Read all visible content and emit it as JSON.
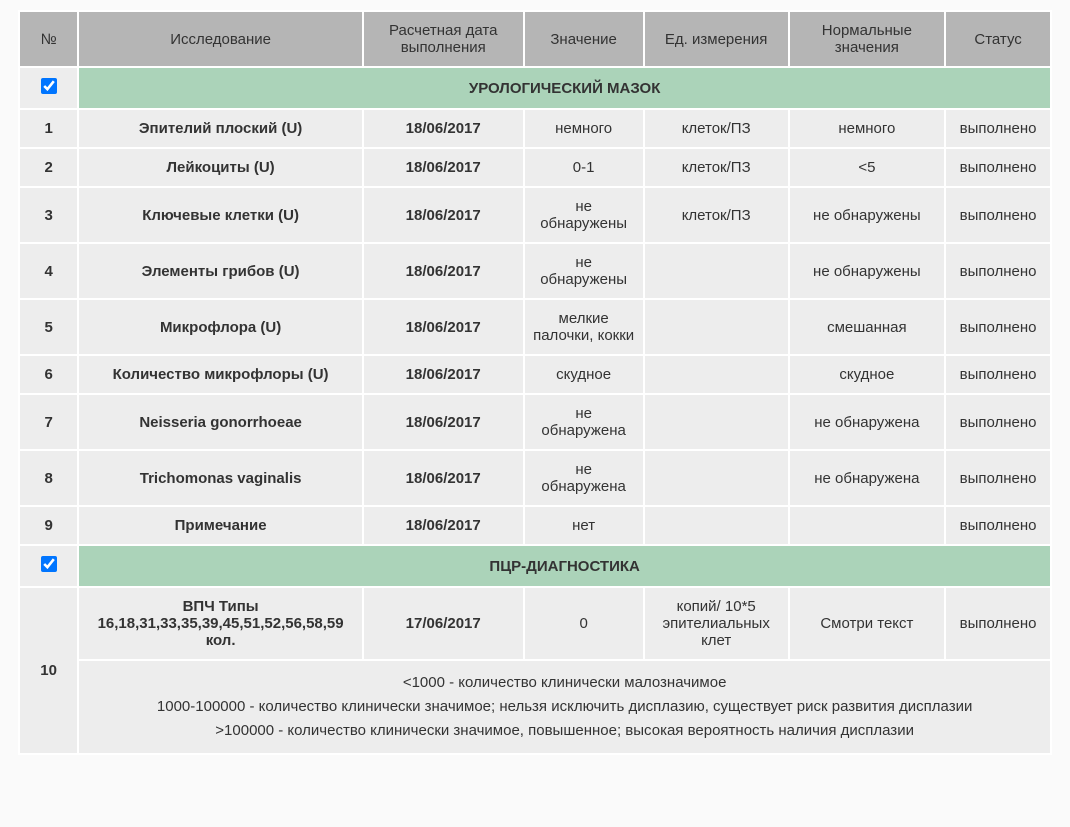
{
  "columns": {
    "num": "№",
    "test": "Исследование",
    "date": "Расчетная дата выполнения",
    "value": "Значение",
    "unit": "Ед. измерения",
    "norm": "Нормальные значения",
    "status": "Статус"
  },
  "sections": [
    {
      "checked": true,
      "title": "УРОЛОГИЧЕСКИЙ МАЗОК",
      "rows": [
        {
          "num": "1",
          "test": "Эпителий плоский (U)",
          "date": "18/06/2017",
          "value": "немного",
          "unit": "клеток/ПЗ",
          "norm": "немного",
          "status": "выполнено"
        },
        {
          "num": "2",
          "test": "Лейкоциты (U)",
          "date": "18/06/2017",
          "value": "0-1",
          "unit": "клеток/ПЗ",
          "norm": "<5",
          "status": "выполнено"
        },
        {
          "num": "3",
          "test": "Ключевые клетки (U)",
          "date": "18/06/2017",
          "value": "не обнаружены",
          "unit": "клеток/ПЗ",
          "norm": "не обнаружены",
          "status": "выполнено"
        },
        {
          "num": "4",
          "test": "Элементы грибов (U)",
          "date": "18/06/2017",
          "value": "не обнаружены",
          "unit": "",
          "norm": "не обнаружены",
          "status": "выполнено"
        },
        {
          "num": "5",
          "test": "Микрофлора (U)",
          "date": "18/06/2017",
          "value": "мелкие палочки, кокки",
          "unit": "",
          "norm": "смешанная",
          "status": "выполнено"
        },
        {
          "num": "6",
          "test": "Количество микрофлоры (U)",
          "date": "18/06/2017",
          "value": "скудное",
          "unit": "",
          "norm": "скудное",
          "status": "выполнено"
        },
        {
          "num": "7",
          "test": "Neisseria gonorrhoeae",
          "date": "18/06/2017",
          "value": "не обнаружена",
          "unit": "",
          "norm": "не обнаружена",
          "status": "выполнено"
        },
        {
          "num": "8",
          "test": "Trichomonas vaginalis",
          "date": "18/06/2017",
          "value": "не обнаружена",
          "unit": "",
          "norm": "не обнаружена",
          "status": "выполнено"
        },
        {
          "num": "9",
          "test": "Примечание",
          "date": "18/06/2017",
          "value": "нет",
          "unit": "",
          "norm": "",
          "status": "выполнено"
        }
      ]
    },
    {
      "checked": true,
      "title": "ПЦР-ДИАГНОСТИКА",
      "rows": [
        {
          "num": "10",
          "test": "ВПЧ Типы 16,18,31,33,35,39,45,51,52,56,58,59 кол.",
          "date": "17/06/2017",
          "value": "0",
          "unit": "копий/ 10*5 эпителиальных клет",
          "norm": "Смотри текст",
          "status": "выполнено",
          "note_lines": [
            "<1000 - количество клинически малозначимое",
            "1000-100000 - количество клинически значимое; нельзя исключить дисплазию, существует риск развития дисплазии",
            ">100000 - количество клинически значимое, повышенное; высокая вероятность наличия дисплазии"
          ]
        }
      ]
    }
  ],
  "colors": {
    "header_bg": "#b5b5b5",
    "cell_bg": "#ededed",
    "section_bg": "#abd3b9",
    "text": "#333333",
    "body_bg": "#fafafa"
  }
}
